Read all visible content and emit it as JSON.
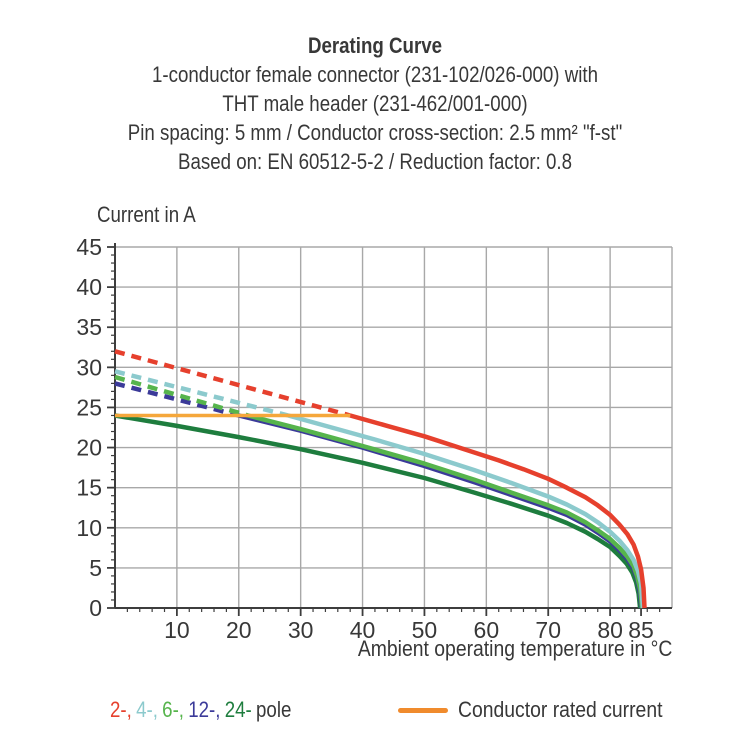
{
  "header": {
    "title": "Derating Curve",
    "subtitle_lines": [
      "1-conductor female connector (231-102/026-000) with",
      "THT male header (231-462/001-000)",
      "Pin spacing: 5 mm / Conductor cross-section: 2.5 mm² \"f-st\"",
      "Based on: EN 60512-5-2 / Reduction factor: 0.8"
    ]
  },
  "legend": {
    "pole_items": [
      {
        "label": "2-,",
        "color": "#e6402d"
      },
      {
        "label": "4-,",
        "color": "#8ccacd"
      },
      {
        "label": "6-,",
        "color": "#56b44c"
      },
      {
        "label": "12-,",
        "color": "#3b3a99"
      },
      {
        "label": "24-",
        "color": "#1e7d3e"
      }
    ],
    "pole_suffix": "pole",
    "rated_current_label": "Conductor rated current",
    "rated_current_color": "#f08b2d"
  },
  "chart_data": {
    "type": "line",
    "title": "Derating Curve",
    "xlabel": "Ambient operating temperature in °C",
    "ylabel": "Current in A",
    "xlim": [
      0,
      90
    ],
    "ylim": [
      0,
      45
    ],
    "grid": true,
    "legend_position": "bottom",
    "x_major_ticks": [
      10,
      20,
      30,
      40,
      50,
      60,
      70,
      80,
      85
    ],
    "x_grid_ticks": [
      10,
      20,
      30,
      40,
      50,
      60,
      70,
      80,
      90
    ],
    "x_minor_step": 2,
    "x_minor_max": 88,
    "y_major_ticks": [
      0,
      5,
      10,
      15,
      20,
      25,
      30,
      35,
      40,
      45
    ],
    "y_grid_ticks": [
      5,
      10,
      15,
      20,
      25,
      30,
      35,
      40,
      45
    ],
    "y_minor_step": 1,
    "rated_current_A": 24,
    "series": [
      {
        "name": "24-pole",
        "color": "#1e7d3e",
        "solid": [
          [
            0,
            24
          ],
          [
            10,
            22.7
          ],
          [
            20,
            21.3
          ],
          [
            30,
            19.8
          ],
          [
            40,
            18.1
          ],
          [
            50,
            16.2
          ],
          [
            58,
            14.4
          ],
          [
            64,
            13.0
          ],
          [
            70,
            11.5
          ],
          [
            73,
            10.6
          ],
          [
            76,
            9.5
          ],
          [
            78,
            8.6
          ],
          [
            80,
            7.6
          ],
          [
            81.5,
            6.5
          ],
          [
            82.7,
            5.5
          ],
          [
            83.6,
            4.4
          ],
          [
            84.2,
            3.2
          ],
          [
            84.6,
            1.8
          ],
          [
            84.85,
            0
          ]
        ]
      },
      {
        "name": "12-pole",
        "color": "#3b3a99",
        "dashed": [
          [
            0,
            28
          ],
          [
            20,
            24
          ]
        ],
        "solid": [
          [
            20,
            24
          ],
          [
            30,
            22.1
          ],
          [
            40,
            20.0
          ],
          [
            50,
            17.7
          ],
          [
            58,
            15.7
          ],
          [
            64,
            14.1
          ],
          [
            70,
            12.5
          ],
          [
            73,
            11.6
          ],
          [
            76,
            10.4
          ],
          [
            78,
            9.4
          ],
          [
            80,
            8.3
          ],
          [
            81.5,
            7.2
          ],
          [
            82.8,
            6.1
          ],
          [
            83.8,
            4.9
          ],
          [
            84.4,
            3.6
          ],
          [
            84.8,
            2.0
          ],
          [
            85.05,
            0
          ]
        ]
      },
      {
        "name": "6-pole",
        "color": "#56b44c",
        "dashed": [
          [
            0,
            28.8
          ],
          [
            21.5,
            24
          ]
        ],
        "solid": [
          [
            21.5,
            24
          ],
          [
            30,
            22.3
          ],
          [
            40,
            20.2
          ],
          [
            50,
            18.0
          ],
          [
            58,
            16.0
          ],
          [
            64,
            14.4
          ],
          [
            70,
            12.8
          ],
          [
            73,
            11.9
          ],
          [
            76,
            10.7
          ],
          [
            78,
            9.7
          ],
          [
            80,
            8.6
          ],
          [
            81.5,
            7.5
          ],
          [
            82.8,
            6.4
          ],
          [
            83.8,
            5.2
          ],
          [
            84.4,
            3.9
          ],
          [
            84.9,
            2.2
          ],
          [
            85.15,
            0
          ]
        ]
      },
      {
        "name": "4-pole",
        "color": "#8ccacd",
        "dashed": [
          [
            0,
            29.5
          ],
          [
            28,
            24
          ]
        ],
        "solid": [
          [
            28,
            24
          ],
          [
            35,
            22.5
          ],
          [
            42,
            21.0
          ],
          [
            50,
            19.2
          ],
          [
            58,
            17.2
          ],
          [
            64,
            15.6
          ],
          [
            70,
            13.9
          ],
          [
            73,
            12.9
          ],
          [
            76,
            11.7
          ],
          [
            78,
            10.7
          ],
          [
            80,
            9.5
          ],
          [
            81.5,
            8.4
          ],
          [
            82.8,
            7.2
          ],
          [
            83.8,
            6.0
          ],
          [
            84.5,
            4.6
          ],
          [
            85.0,
            3.0
          ],
          [
            85.3,
            0
          ]
        ]
      },
      {
        "name": "2-pole",
        "color": "#e6402d",
        "dashed": [
          [
            0,
            32
          ],
          [
            38,
            24
          ]
        ],
        "solid": [
          [
            38,
            24
          ],
          [
            44,
            22.7
          ],
          [
            50,
            21.4
          ],
          [
            56,
            19.9
          ],
          [
            62,
            18.4
          ],
          [
            66,
            17.3
          ],
          [
            70,
            16.1
          ],
          [
            73,
            15.0
          ],
          [
            76,
            13.8
          ],
          [
            78,
            12.8
          ],
          [
            80,
            11.6
          ],
          [
            81.5,
            10.4
          ],
          [
            82.8,
            9.2
          ],
          [
            83.8,
            7.9
          ],
          [
            84.5,
            6.4
          ],
          [
            85.0,
            4.8
          ],
          [
            85.4,
            2.5
          ],
          [
            85.55,
            0
          ]
        ]
      },
      {
        "name": "Conductor rated current",
        "color": "#f5a73b",
        "solid": [
          [
            0,
            24
          ],
          [
            38,
            24
          ]
        ]
      }
    ]
  }
}
